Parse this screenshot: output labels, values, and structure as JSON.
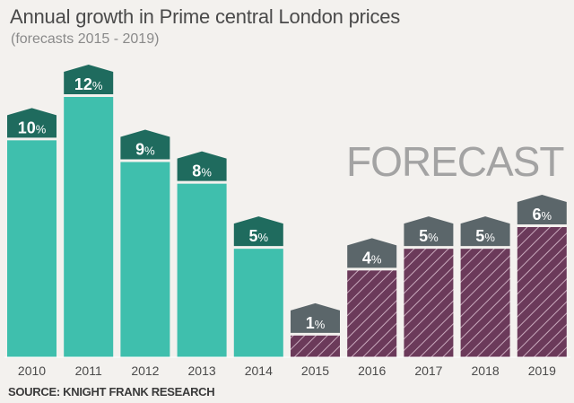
{
  "chart_data": {
    "type": "bar",
    "title": "Annual growth in Prime central London prices",
    "subtitle": "(forecasts 2015 - 2019)",
    "source": "SOURCE: KNIGHT FRANK RESEARCH",
    "annotation": "FORECAST",
    "categories": [
      "2010",
      "2011",
      "2012",
      "2013",
      "2014",
      "2015",
      "2016",
      "2017",
      "2018",
      "2019"
    ],
    "values": [
      10,
      12,
      9,
      8,
      5,
      1,
      4,
      5,
      5,
      6
    ],
    "value_labels": [
      "10%",
      "12%",
      "9%",
      "8%",
      "5%",
      "1%",
      "4%",
      "5%",
      "5%",
      "6%"
    ],
    "forecast": [
      false,
      false,
      false,
      false,
      false,
      true,
      true,
      true,
      true,
      true
    ],
    "ylim": [
      0,
      12
    ],
    "grid": false,
    "colors": {
      "actual_bar": "#3fbfad",
      "actual_tag": "#1f6b5e",
      "forecast_bar": "#6b3a5a",
      "forecast_hatch": "#c9a9bd",
      "forecast_tag": "#5b666a",
      "annotation": "#a3a3a3"
    }
  }
}
